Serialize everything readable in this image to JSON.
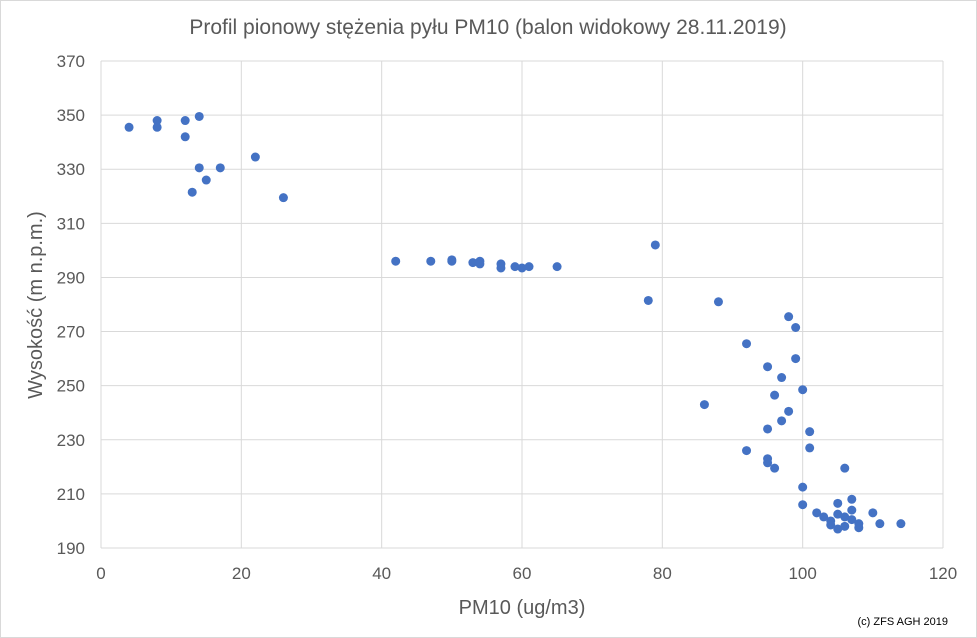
{
  "chart_data": {
    "type": "scatter",
    "title": "Profil pionowy stężenia pyłu PM10 (balon widokowy 28.11.2019)",
    "xlabel": "PM10 (ug/m3)",
    "ylabel": "Wysokość (m n.p.m.)",
    "xlim": [
      0,
      120
    ],
    "ylim": [
      190,
      370
    ],
    "xticks": [
      0,
      20,
      40,
      60,
      80,
      100,
      120
    ],
    "yticks": [
      190,
      210,
      230,
      250,
      270,
      290,
      310,
      330,
      350,
      370
    ],
    "grid": true,
    "marker_color": "#4472c4",
    "credit": "(c) ZFS AGH 2019",
    "points": [
      [
        4,
        345.5
      ],
      [
        8,
        348
      ],
      [
        8,
        345.5
      ],
      [
        12,
        348
      ],
      [
        14,
        349.5
      ],
      [
        12,
        342
      ],
      [
        14,
        330.5
      ],
      [
        17,
        330.5
      ],
      [
        15,
        326
      ],
      [
        13,
        321.5
      ],
      [
        22,
        334.5
      ],
      [
        26,
        319.5
      ],
      [
        42,
        296
      ],
      [
        47,
        296
      ],
      [
        50,
        296.5
      ],
      [
        50,
        296
      ],
      [
        53,
        295.5
      ],
      [
        54,
        296
      ],
      [
        54,
        295
      ],
      [
        57,
        295
      ],
      [
        57,
        293.5
      ],
      [
        59,
        294
      ],
      [
        60,
        293.5
      ],
      [
        61,
        294
      ],
      [
        65,
        294
      ],
      [
        79,
        302
      ],
      [
        78,
        281.5
      ],
      [
        88,
        281
      ],
      [
        98,
        275.5
      ],
      [
        99,
        271.5
      ],
      [
        92,
        265.5
      ],
      [
        99,
        260
      ],
      [
        95,
        257
      ],
      [
        97,
        253
      ],
      [
        100,
        248.5
      ],
      [
        96,
        246.5
      ],
      [
        86,
        243
      ],
      [
        98,
        240.5
      ],
      [
        97,
        237
      ],
      [
        95,
        234
      ],
      [
        101,
        233
      ],
      [
        101,
        227
      ],
      [
        92,
        226
      ],
      [
        95,
        223
      ],
      [
        95,
        221.5
      ],
      [
        96,
        219.5
      ],
      [
        106,
        219.5
      ],
      [
        100,
        212.5
      ],
      [
        107,
        208
      ],
      [
        105,
        206.5
      ],
      [
        100,
        206
      ],
      [
        102,
        203
      ],
      [
        105,
        202.5
      ],
      [
        107,
        204
      ],
      [
        110,
        203
      ],
      [
        103,
        201.5
      ],
      [
        106,
        201.5
      ],
      [
        107,
        200.5
      ],
      [
        104,
        200
      ],
      [
        104,
        198.5
      ],
      [
        106,
        198
      ],
      [
        108,
        199
      ],
      [
        108,
        197.5
      ],
      [
        105,
        197
      ],
      [
        111,
        199
      ],
      [
        114,
        199
      ]
    ]
  }
}
